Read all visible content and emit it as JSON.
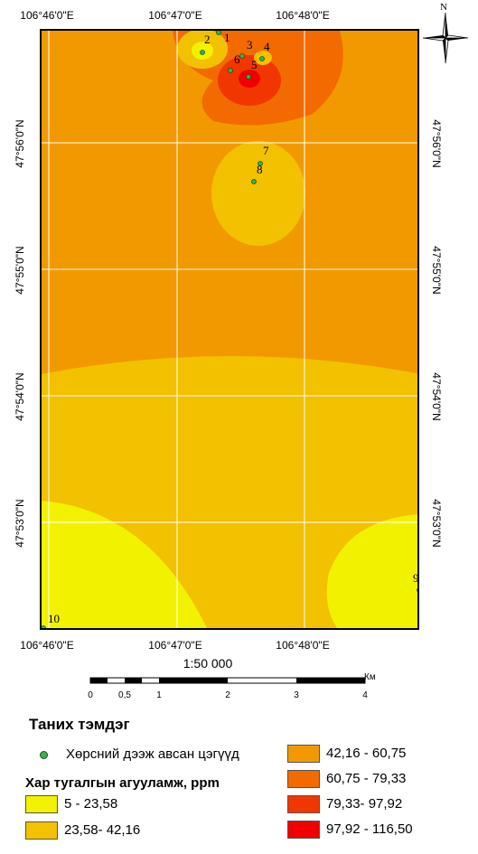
{
  "lon_labels": [
    "106°46'0\"E",
    "106°47'0\"E",
    "106°48'0\"E"
  ],
  "lat_labels": [
    "47°56'0\"N",
    "47°55'0\"N",
    "47°54'0\"N",
    "47°53'0\"N"
  ],
  "north_label": "N",
  "scale_text": "1:50 000",
  "scale_bar": {
    "unit": "Км",
    "ticks": [
      "0",
      "0,5",
      "1",
      "2",
      "3",
      "4"
    ]
  },
  "sample_points": [
    "1",
    "2",
    "3",
    "4",
    "5",
    "6",
    "7",
    "8",
    "9",
    "10"
  ],
  "legend": {
    "title": "Таних тэмдэг",
    "point_label": "Хөрсний дээж авсан цэгүүд",
    "subtitle": "Хар тугалгын агууламж, ppm",
    "classes": [
      {
        "label": "5 - 23,58",
        "color": "#f2f200"
      },
      {
        "label": "23,58- 42,16",
        "color": "#f2c100"
      },
      {
        "label": "42,16 - 60,75",
        "color": "#f29900"
      },
      {
        "label": "60,75 - 79,33",
        "color": "#f26a00"
      },
      {
        "label": "79,33- 97,92",
        "color": "#f23600"
      },
      {
        "label": "97,92 - 116,50",
        "color": "#f20000"
      }
    ]
  },
  "colors": {
    "point_fill": "#3fae49",
    "point_outline": "#0a5a1a",
    "grid": "#ffffff",
    "frame": "#000000"
  }
}
